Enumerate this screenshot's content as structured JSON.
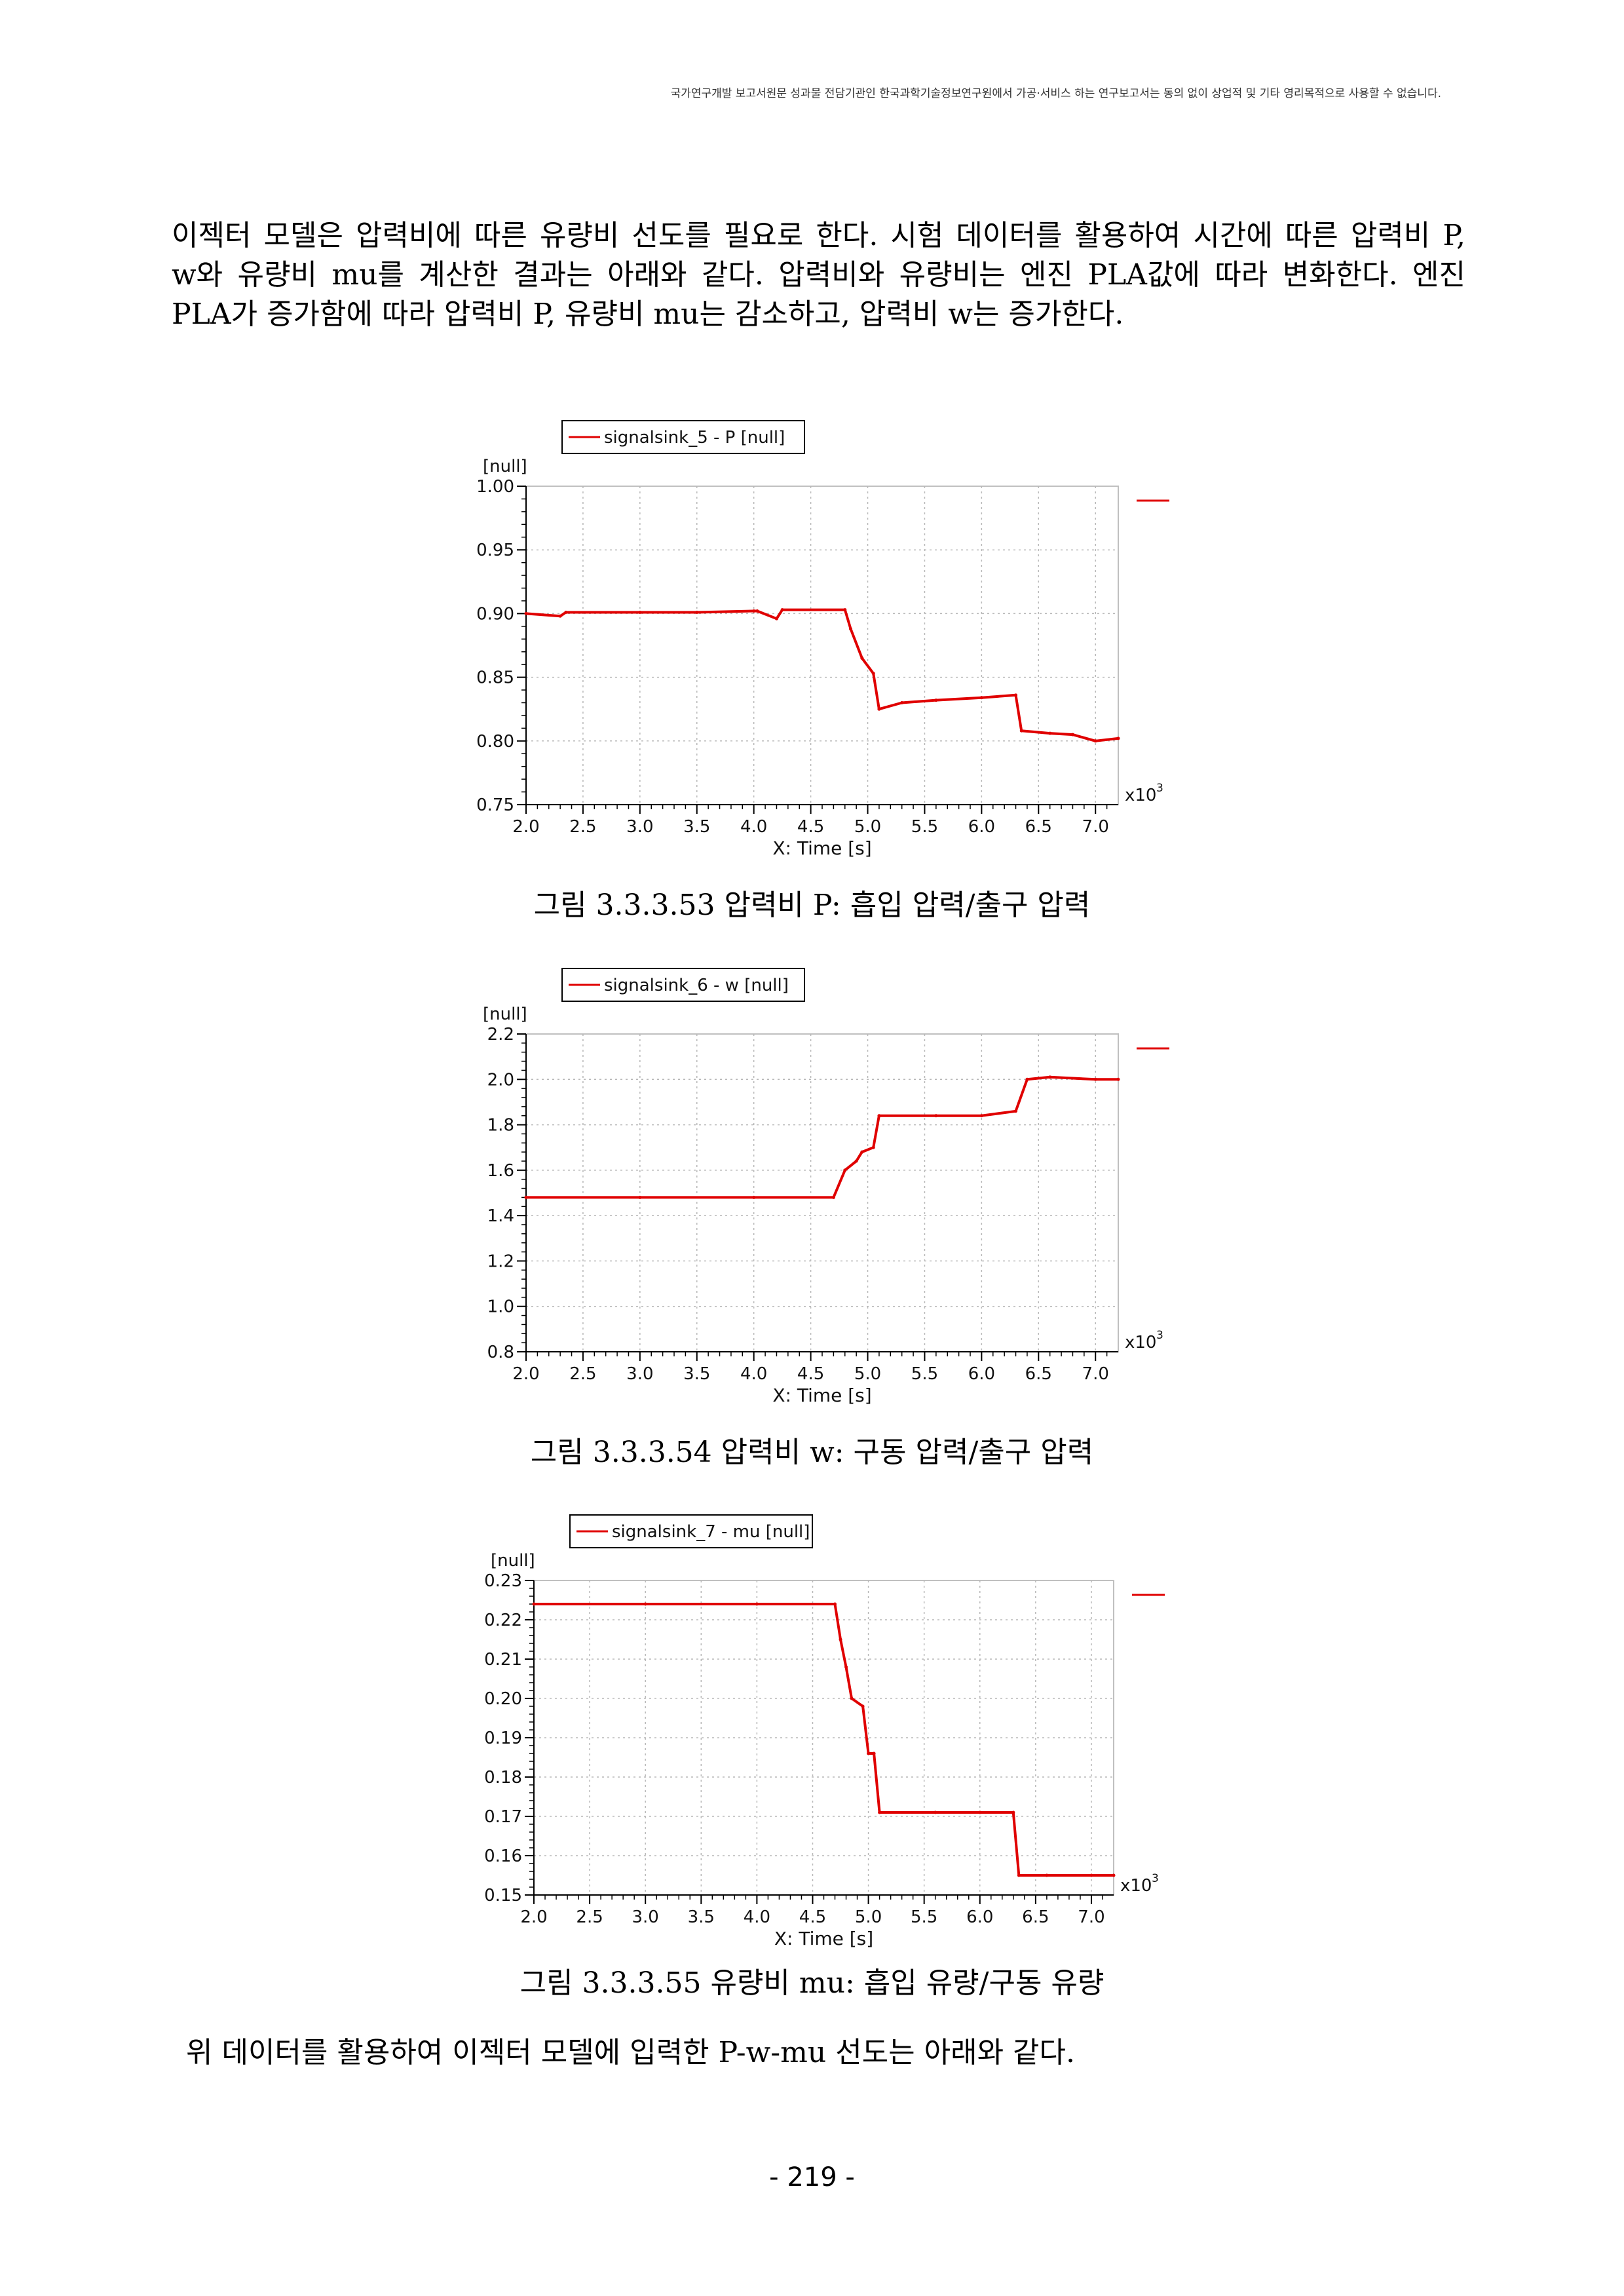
{
  "header_note": "국가연구개발 보고서원문 성과물 전담기관인 한국과학기술정보연구원에서 가공·서비스 하는 연구보고서는 동의 없이 상업적 및 기타 영리목적으로 사용할 수 없습니다.",
  "paragraph_top": "이젝터 모델은 압력비에 따른 유량비 선도를 필요로 한다. 시험 데이터를 활용하여 시간에 따른 압력비 P, w와 유량비 mu를 계산한 결과는 아래와 같다. 압력비와 유량비는 엔진 PLA값에 따라 변화한다. 엔진 PLA가 증가함에 따라 압력비 P, 유량비 mu는 감소하고, 압력비 w는 증가한다.",
  "paragraph_bottom": "위 데이터를 활용하여 이젝터 모델에 입력한 P-w-mu 선도는 아래와 같다.",
  "page_number": "- 219 -",
  "colors": {
    "series": "#e00000",
    "grid": "#b8b8b8",
    "frame": "#c0c0c0"
  },
  "chart_data": [
    {
      "type": "line",
      "legend": "signalsink_5 - P [null]",
      "yunit": "[null]",
      "xlabel": "X: Time [s]",
      "xmultiplier": "x10",
      "xmultiplier_exp": "3",
      "xlim": [
        2.0,
        7.2
      ],
      "ylim": [
        0.75,
        1.0
      ],
      "xticks": [
        "2.0",
        "2.5",
        "3.0",
        "3.5",
        "4.0",
        "4.5",
        "5.0",
        "5.5",
        "6.0",
        "6.5",
        "7.0"
      ],
      "yticks": [
        "1.00",
        "0.95",
        "0.90",
        "0.85",
        "0.80",
        "0.75"
      ],
      "series": [
        {
          "x": [
            2.0,
            2.3,
            2.35,
            3.0,
            3.5,
            4.0,
            4.03,
            4.2,
            4.25,
            4.8,
            4.85,
            4.95,
            5.05,
            5.1,
            5.3,
            5.6,
            6.0,
            6.3,
            6.35,
            6.6,
            6.8,
            7.0,
            7.2
          ],
          "y": [
            0.9,
            0.898,
            0.901,
            0.901,
            0.901,
            0.902,
            0.902,
            0.896,
            0.903,
            0.903,
            0.888,
            0.865,
            0.853,
            0.825,
            0.83,
            0.832,
            0.834,
            0.836,
            0.808,
            0.806,
            0.805,
            0.8,
            0.802
          ]
        }
      ]
    },
    {
      "type": "line",
      "legend": "signalsink_6 - w [null]",
      "yunit": "[null]",
      "xlabel": "X: Time [s]",
      "xmultiplier": "x10",
      "xmultiplier_exp": "3",
      "xlim": [
        2.0,
        7.2
      ],
      "ylim": [
        0.8,
        2.2
      ],
      "xticks": [
        "2.0",
        "2.5",
        "3.0",
        "3.5",
        "4.0",
        "4.5",
        "5.0",
        "5.5",
        "6.0",
        "6.5",
        "7.0"
      ],
      "yticks": [
        "2.2",
        "2.0",
        "1.8",
        "1.6",
        "1.4",
        "1.2",
        "1.0",
        "0.8"
      ],
      "series": [
        {
          "x": [
            2.0,
            3.0,
            4.0,
            4.7,
            4.8,
            4.9,
            4.95,
            5.05,
            5.1,
            5.6,
            6.0,
            6.3,
            6.4,
            6.6,
            7.0,
            7.2
          ],
          "y": [
            1.48,
            1.48,
            1.48,
            1.48,
            1.6,
            1.64,
            1.68,
            1.7,
            1.84,
            1.84,
            1.84,
            1.86,
            2.0,
            2.01,
            2.0,
            2.0
          ]
        }
      ]
    },
    {
      "type": "line",
      "legend": "signalsink_7 - mu [null]",
      "yunit": "[null]",
      "xlabel": "X: Time [s]",
      "xmultiplier": "x10",
      "xmultiplier_exp": "3",
      "xlim": [
        2.0,
        7.2
      ],
      "ylim": [
        0.15,
        0.23
      ],
      "xticks": [
        "2.0",
        "2.5",
        "3.0",
        "3.5",
        "4.0",
        "4.5",
        "5.0",
        "5.5",
        "6.0",
        "6.5",
        "7.0"
      ],
      "yticks": [
        "0.23",
        "0.22",
        "0.21",
        "0.20",
        "0.19",
        "0.18",
        "0.17",
        "0.16",
        "0.15"
      ],
      "series": [
        {
          "x": [
            2.0,
            3.0,
            4.0,
            4.7,
            4.75,
            4.8,
            4.85,
            4.95,
            5.0,
            5.05,
            5.1,
            5.6,
            6.0,
            6.3,
            6.35,
            6.6,
            7.0,
            7.2
          ],
          "y": [
            0.224,
            0.224,
            0.224,
            0.224,
            0.215,
            0.208,
            0.2,
            0.198,
            0.186,
            0.186,
            0.171,
            0.171,
            0.171,
            0.171,
            0.155,
            0.155,
            0.155,
            0.155
          ]
        }
      ]
    }
  ],
  "captions": [
    "그림 3.3.3.53 압력비 P: 흡입 압력/출구 압력",
    "그림 3.3.3.54 압력비 w: 구동 압력/출구 압력",
    "그림 3.3.3.55 유량비 mu: 흡입 유량/구동 유량"
  ]
}
